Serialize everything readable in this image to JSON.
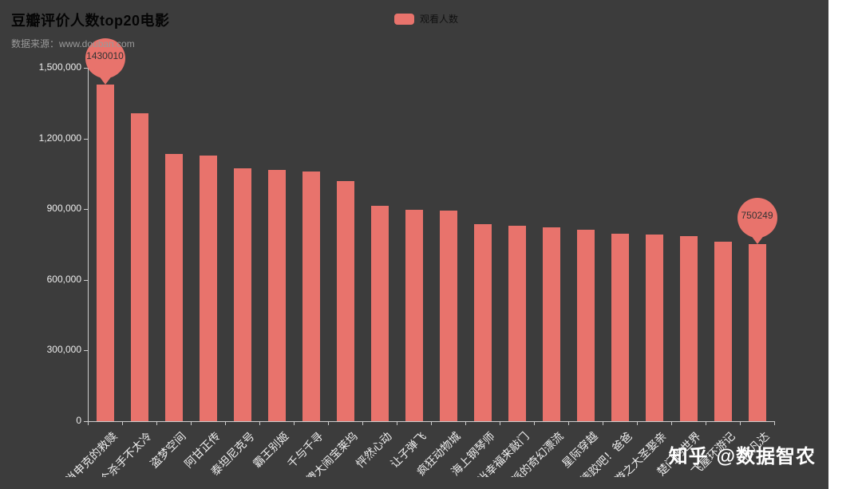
{
  "title": "豆瓣评价人数top20电影",
  "subtitle": "数据来源：www.douban.com",
  "legend": {
    "label": "观看人数",
    "color": "#e8736c"
  },
  "watermark": {
    "brand": "知乎",
    "handle": "@数据智农"
  },
  "colors": {
    "page_background": "#ffffff",
    "chart_background": "#3c3c3c",
    "bar": "#e8736c",
    "axis": "#cccccc",
    "axis_label": "#ededed",
    "title_text": "#050505",
    "subtitle_text": "#9a9a9a",
    "watermark_text": "#ffffff",
    "markpoint_label": "#333333"
  },
  "chart_data": {
    "type": "bar",
    "title": "豆瓣评价人数top20电影",
    "series_name": "观看人数",
    "categories": [
      "肖申克的救赎",
      "这个杀手不太冷",
      "盗梦空间",
      "阿甘正传",
      "泰坦尼克号",
      "霸王别姬",
      "千与千寻",
      "三傻大闹宝莱坞",
      "怦然心动",
      "让子弹飞",
      "疯狂动物城",
      "海上钢琴师",
      "当幸福来敲门",
      "少年派的奇幻漂流",
      "星际穿越",
      "摔跤吧！爸爸",
      "大话西游之大圣娶亲",
      "楚门的世界",
      "飞屋环游记",
      "阿凡达"
    ],
    "values": [
      1430010,
      1308000,
      1133000,
      1128000,
      1072000,
      1065000,
      1060000,
      1018000,
      913000,
      898000,
      893000,
      836000,
      828000,
      822000,
      812000,
      797000,
      793000,
      786000,
      762000,
      750249
    ],
    "ylim": [
      0,
      1500000
    ],
    "y_ticks": [
      "0",
      "300,000",
      "600,000",
      "900,000",
      "1,200,000",
      "1,500,000"
    ],
    "x_label_rotate": 45,
    "legend_position": "top-center",
    "grid_lines": false,
    "mark_points": [
      {
        "type": "max",
        "index": 0,
        "label": "1430010"
      },
      {
        "type": "min",
        "index": 19,
        "label": "750249"
      }
    ]
  }
}
